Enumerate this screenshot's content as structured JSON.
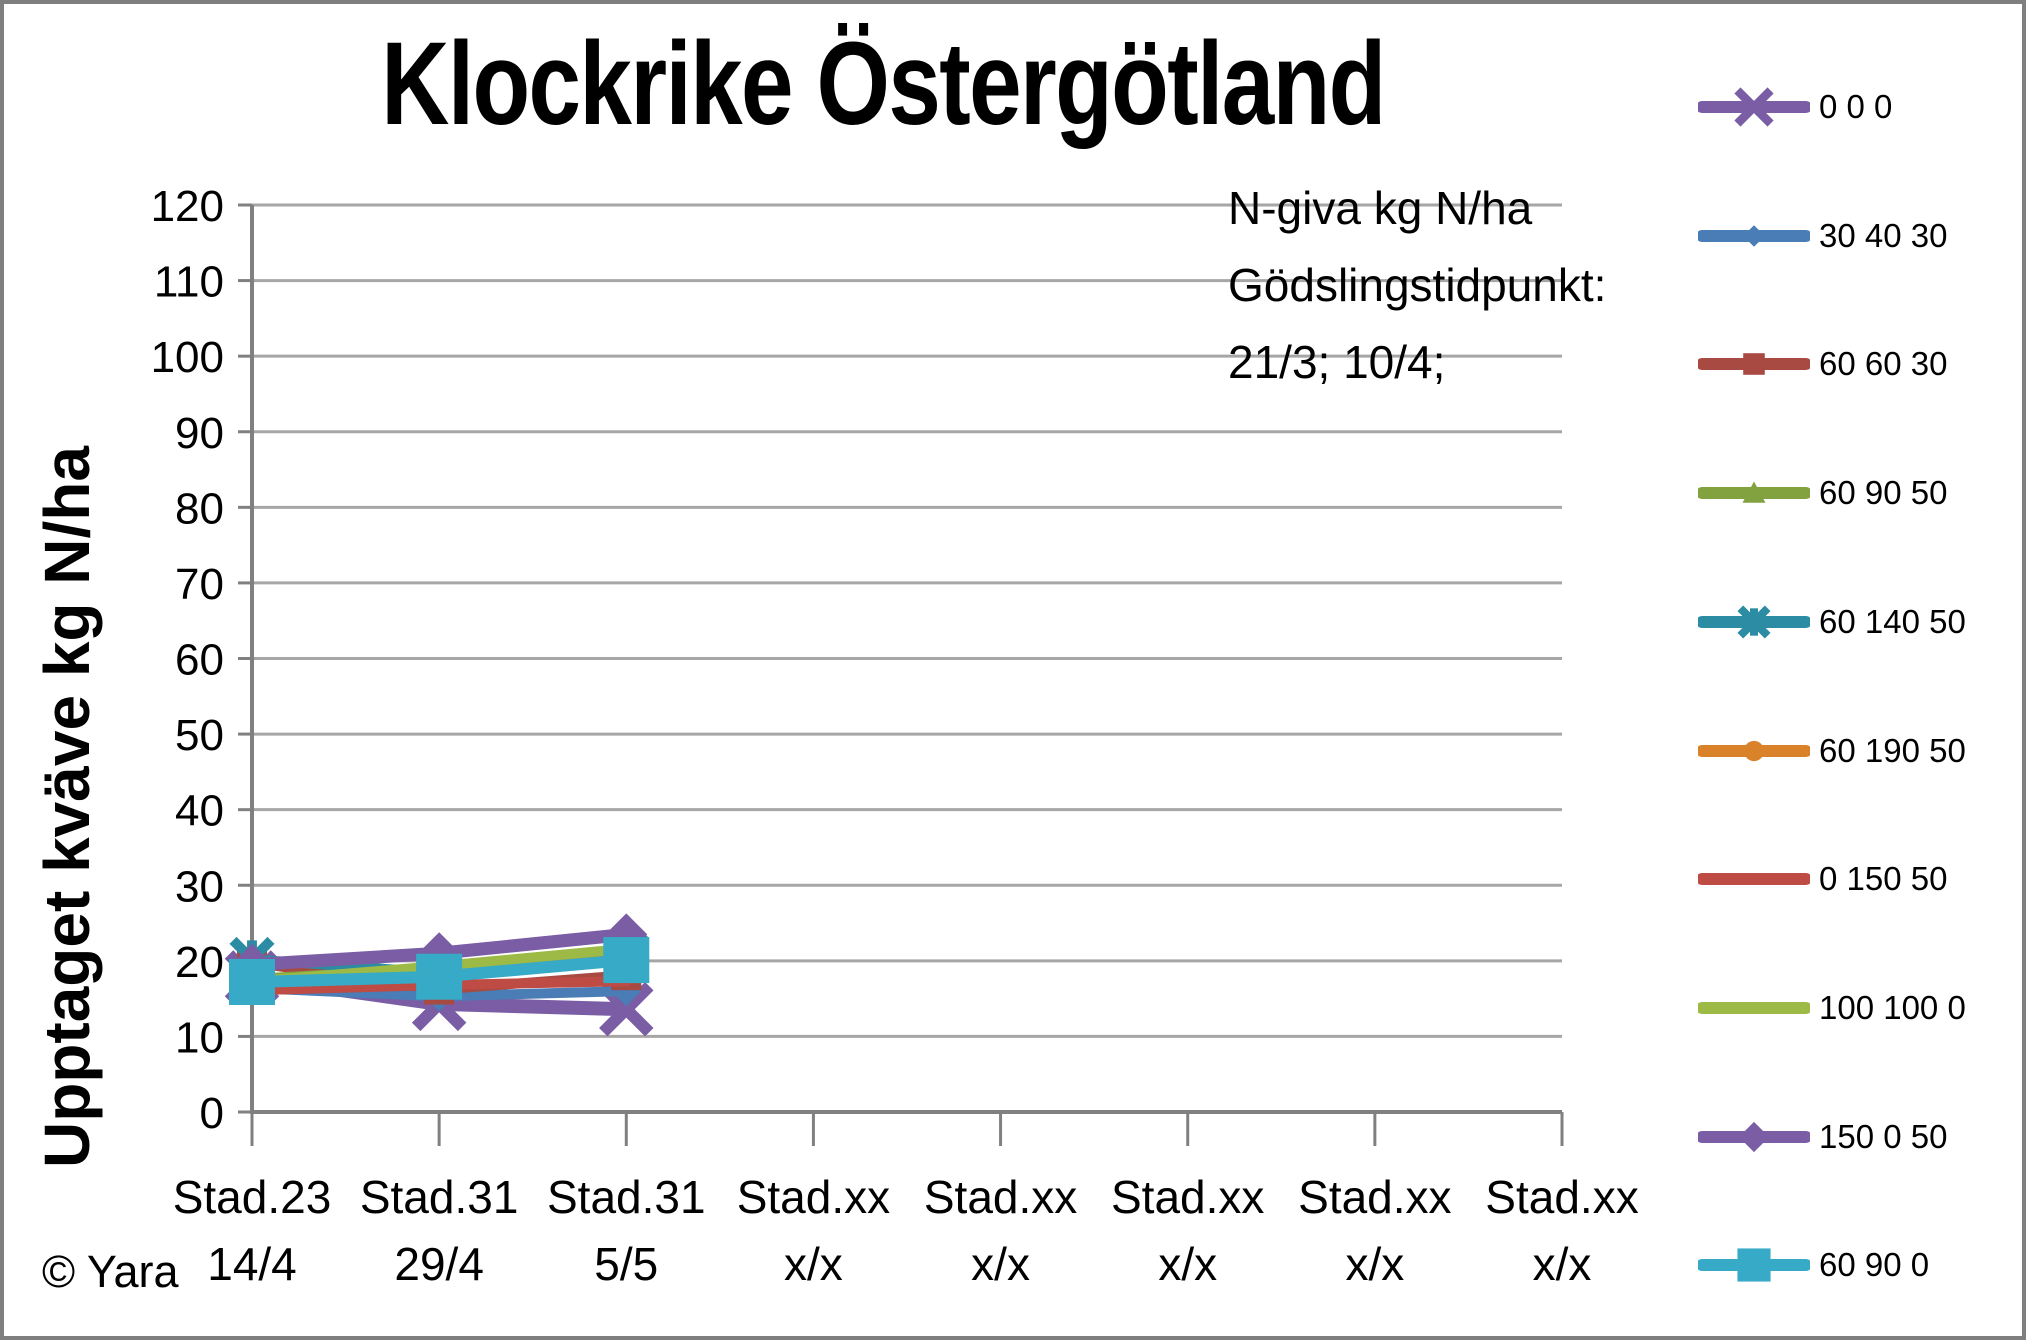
{
  "page": {
    "title": "Klockrike Östergötland",
    "copyright": "© Yara"
  },
  "y_axis_title": "Upptaget kväve kg N/ha",
  "annotation": {
    "lines": [
      "N-giva kg N/ha",
      "Gödslingstidpunkt:",
      "21/3; 10/4;"
    ]
  },
  "colors": {
    "gridline": "#A6A6A6",
    "axis": "#808080",
    "text": "#000000"
  },
  "chart_data": {
    "type": "line",
    "title": "Klockrike Östergötland",
    "ylabel": "Upptaget kväve kg N/ha",
    "ylim": [
      0,
      120
    ],
    "ytick_step": 10,
    "ytick_labels": [
      "0",
      "10",
      "20",
      "30",
      "40",
      "50",
      "60",
      "70",
      "80",
      "90",
      "100",
      "110",
      "120"
    ],
    "grid": true,
    "legend_position": "right",
    "legend_title": "N-giva kg N/ha",
    "categories": [
      {
        "line1": "Stad.23",
        "line2": "14/4"
      },
      {
        "line1": "Stad.31",
        "line2": "29/4"
      },
      {
        "line1": "Stad.31",
        "line2": "5/5"
      },
      {
        "line1": "Stad.xx",
        "line2": "x/x"
      },
      {
        "line1": "Stad.xx",
        "line2": "x/x"
      },
      {
        "line1": "Stad.xx",
        "line2": "x/x"
      },
      {
        "line1": "Stad.xx",
        "line2": "x/x"
      },
      {
        "line1": "Stad.xx",
        "line2": "x/x"
      }
    ],
    "series": [
      {
        "name": "0 0 0",
        "color": "#7A5DA4",
        "marker": "x",
        "line_width": 14,
        "marker_size": 46,
        "values": [
          17.8,
          14.3,
          13.6
        ]
      },
      {
        "name": "30 40 30",
        "color": "#4A7CB5",
        "marker": "diamond",
        "line_width": 10,
        "marker_size": 30,
        "values": [
          16.4,
          15.3,
          16.0
        ]
      },
      {
        "name": "60 60 30",
        "color": "#A94A42",
        "marker": "square",
        "line_width": 10,
        "marker_size": 30,
        "values": [
          19.8,
          16.2,
          18.1
        ]
      },
      {
        "name": "60 90 50",
        "color": "#82A13F",
        "marker": "triangle",
        "line_width": 10,
        "marker_size": 32,
        "values": [
          17.6,
          19.0,
          21.3
        ]
      },
      {
        "name": "60 140 50",
        "color": "#2B8CA4",
        "marker": "star",
        "line_width": 10,
        "marker_size": 38,
        "values": [
          20.2,
          18.4,
          21.0
        ]
      },
      {
        "name": "60 190 50",
        "color": "#D9822A",
        "marker": "circle",
        "line_width": 10,
        "marker_size": 28,
        "values": [
          17.0,
          18.2,
          20.8
        ]
      },
      {
        "name": "0 150 50",
        "color": "#BF4B45",
        "marker": "none",
        "line_width": 10,
        "marker_size": 0,
        "values": [
          16.1,
          16.8,
          17.3
        ]
      },
      {
        "name": "100 100 0",
        "color": "#9CBA45",
        "marker": "none",
        "line_width": 10,
        "marker_size": 0,
        "values": [
          17.3,
          19.3,
          21.6
        ]
      },
      {
        "name": "150 0 50",
        "color": "#7A5DA4",
        "marker": "diamond",
        "line_width": 13,
        "marker_size": 42,
        "values": [
          19.5,
          21.0,
          23.5
        ]
      },
      {
        "name": "60 90 0",
        "color": "#36AAC6",
        "marker": "square",
        "line_width": 12,
        "marker_size": 46,
        "values": [
          17.2,
          17.9,
          20.1
        ]
      }
    ]
  }
}
